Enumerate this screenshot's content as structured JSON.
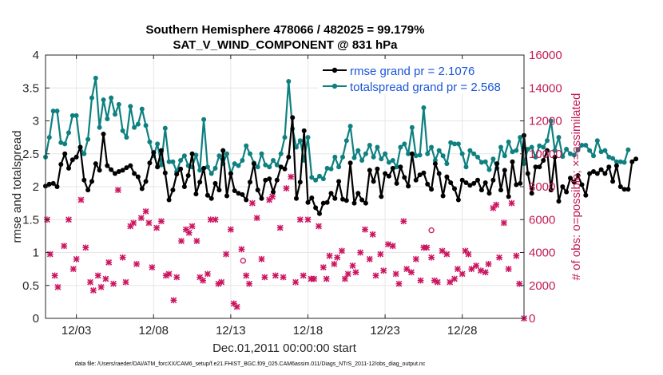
{
  "chart_data": {
    "type": "line",
    "title_line1": "Southern Hemisphere 478066 / 482025 = 99.179%",
    "title_line2": "SAT_V_WIND_COMPONENT @ 831 hPa",
    "xlabel": "Dec.01,2011 00:00:00 start",
    "ylabel": "rmse and totalspread",
    "ylabel_right": "# of obs: o=possible; ×=assimilated",
    "footnote": "data file: /Users/raeder/DAI/ATM_forcXX/CAM6_setup/f.e21.FHIST_BGC.f09_025.CAM6assim.011/Diags_NTrS_2011-12/obs_diag_output.nc",
    "xlim": [
      1.0,
      32.0
    ],
    "ylim": [
      0,
      4
    ],
    "ylim_right": [
      0,
      16000
    ],
    "x_ticks": [
      3,
      8,
      13,
      18,
      23,
      28
    ],
    "x_tick_labels": [
      "12/03",
      "12/08",
      "12/13",
      "12/18",
      "12/23",
      "12/28"
    ],
    "y_ticks": [
      0,
      0.5,
      1,
      1.5,
      2,
      2.5,
      3,
      3.5,
      4
    ],
    "y_tick_labels": [
      "0",
      "0.5",
      "1",
      "1.5",
      "2",
      "2.5",
      "3",
      "3.5",
      "4"
    ],
    "y_ticks_right": [
      0,
      2000,
      4000,
      6000,
      8000,
      10000,
      12000,
      14000,
      16000
    ],
    "y_tick_labels_right": [
      "0",
      "2000",
      "4000",
      "6000",
      "8000",
      "10000",
      "12000",
      "14000",
      "16000"
    ],
    "colors": {
      "rmse": "#000000",
      "totalspread": "#0f8080",
      "obs": "#cc1460",
      "legend_text": "#1a56d9",
      "grid": "#e6e6e6"
    },
    "series": [
      {
        "name": "rmse",
        "legend": "rmse grand pr = 2.1076",
        "x_start": 1.0,
        "x_step": 0.25,
        "values": [
          2.01,
          2.04,
          2.05,
          2.0,
          2.34,
          2.5,
          2.28,
          2.41,
          2.45,
          2.6,
          2.1,
          1.95,
          2.08,
          2.35,
          2.25,
          2.8,
          2.32,
          2.26,
          2.2,
          2.23,
          2.25,
          2.29,
          2.32,
          2.2,
          2.15,
          1.97,
          2.08,
          2.36,
          2.52,
          2.3,
          2.55,
          2.21,
          1.8,
          1.95,
          2.19,
          2.27,
          2.0,
          2.17,
          2.5,
          1.89,
          2.07,
          2.28,
          1.87,
          1.82,
          2.05,
          1.95,
          2.55,
          1.86,
          2.2,
          1.94,
          1.9,
          1.88,
          1.8,
          2.07,
          2.35,
          1.95,
          1.82,
          2.1,
          2.12,
          1.92,
          2.1,
          2.3,
          2.27,
          2.45,
          3.05,
          1.82,
          2.07,
          2.85,
          1.76,
          1.83,
          1.68,
          1.59,
          1.75,
          1.76,
          1.9,
          1.82,
          2.08,
          1.81,
          1.79,
          2.36,
          1.75,
          1.9,
          1.8,
          1.75,
          2.25,
          2.08,
          2.27,
          1.85,
          2.2,
          2.16,
          2.28,
          2.05,
          2.3,
          2.14,
          2.01,
          2.5,
          2.1,
          2.18,
          2.21,
          2.04,
          1.96,
          2.35,
          2.2,
          1.86,
          2.15,
          2.06,
          1.97,
          1.8,
          2.1,
          2.06,
          2.02,
          2.05,
          2.1,
          1.95,
          2.06,
          1.9,
          2.1,
          2.35,
          1.95,
          2.25,
          1.85,
          2.38,
          2.03,
          2.05,
          2.78,
          2.2,
          1.9,
          2.3,
          2.3,
          2.4,
          2.55,
          1.95,
          2.45,
          1.78,
          2.0,
          1.92,
          2.13,
          2.07,
          2.17,
          2.03,
          1.87,
          2.2,
          2.23,
          2.2,
          2.26,
          2.2,
          2.3,
          2.08,
          2.32,
          2.0,
          1.96,
          1.96,
          2.38,
          2.42
        ]
      },
      {
        "name": "totalspread",
        "legend": "totalspread grand pr = 2.568",
        "x_start": 1.0,
        "x_step": 0.25,
        "values": [
          2.45,
          2.75,
          3.15,
          3.15,
          2.67,
          2.65,
          2.82,
          3.08,
          3.08,
          2.6,
          2.5,
          2.72,
          3.35,
          3.65,
          2.9,
          3.32,
          3.03,
          3.35,
          3.1,
          3.25,
          2.85,
          2.75,
          3.22,
          2.9,
          2.95,
          3.18,
          2.93,
          2.68,
          2.47,
          2.65,
          2.33,
          2.89,
          2.38,
          2.38,
          2.23,
          2.4,
          2.47,
          2.32,
          2.3,
          2.48,
          2.25,
          3.02,
          2.3,
          2.2,
          2.28,
          2.47,
          2.35,
          2.5,
          2.2,
          2.35,
          2.32,
          2.4,
          2.62,
          2.5,
          2.36,
          2.3,
          2.5,
          2.33,
          2.3,
          2.4,
          2.33,
          2.5,
          2.75,
          3.6,
          2.88,
          2.6,
          2.7,
          2.4,
          2.75,
          2.14,
          2.1,
          2.16,
          2.12,
          2.28,
          2.27,
          2.45,
          2.3,
          2.45,
          2.7,
          2.92,
          2.44,
          2.55,
          2.4,
          2.5,
          2.63,
          2.45,
          2.6,
          2.42,
          2.5,
          2.37,
          2.4,
          2.3,
          2.6,
          2.65,
          2.5,
          2.9,
          2.47,
          2.48,
          3.2,
          2.5,
          2.6,
          2.4,
          2.55,
          2.47,
          2.35,
          2.67,
          2.65,
          2.65,
          2.5,
          2.3,
          2.55,
          2.5,
          2.45,
          2.37,
          2.38,
          2.26,
          2.42,
          2.28,
          2.6,
          2.47,
          2.68,
          2.53,
          2.55,
          2.75,
          2.35,
          2.57,
          2.6,
          2.45,
          2.62,
          2.6,
          2.7,
          3.0,
          2.55,
          2.75,
          2.46,
          2.57,
          2.5,
          2.48,
          2.56,
          2.63,
          2.63,
          2.55,
          2.47,
          2.7,
          2.53,
          2.55,
          2.45,
          2.43,
          2.38,
          2.38,
          2.37,
          2.56
        ]
      }
    ],
    "obs_assimilated": {
      "name": "# of obs assimilated",
      "marker": "x",
      "points": [
        [
          1.1,
          6000
        ],
        [
          1.3,
          3900
        ],
        [
          1.6,
          2600
        ],
        [
          1.8,
          1900
        ],
        [
          2.2,
          4400
        ],
        [
          2.5,
          6000
        ],
        [
          2.8,
          3000
        ],
        [
          3.0,
          3600
        ],
        [
          3.3,
          7200
        ],
        [
          3.6,
          4300
        ],
        [
          3.9,
          2200
        ],
        [
          4.1,
          1700
        ],
        [
          4.4,
          2600
        ],
        [
          4.6,
          1900
        ],
        [
          4.9,
          2400
        ],
        [
          5.1,
          3400
        ],
        [
          5.4,
          2100
        ],
        [
          5.7,
          7800
        ],
        [
          6.0,
          3700
        ],
        [
          6.2,
          2200
        ],
        [
          6.5,
          5600
        ],
        [
          6.7,
          5800
        ],
        [
          6.9,
          3300
        ],
        [
          7.2,
          6100
        ],
        [
          7.5,
          6500
        ],
        [
          7.7,
          5800
        ],
        [
          7.9,
          3100
        ],
        [
          8.2,
          5500
        ],
        [
          8.5,
          5900
        ],
        [
          8.8,
          2600
        ],
        [
          9.0,
          2700
        ],
        [
          9.3,
          1100
        ],
        [
          9.5,
          2500
        ],
        [
          9.8,
          4700
        ],
        [
          10.1,
          5400
        ],
        [
          10.3,
          5200
        ],
        [
          10.5,
          5600
        ],
        [
          10.8,
          4700
        ],
        [
          11.0,
          2500
        ],
        [
          11.2,
          2300
        ],
        [
          11.5,
          2700
        ],
        [
          11.7,
          6000
        ],
        [
          12.0,
          6000
        ],
        [
          12.2,
          2100
        ],
        [
          12.4,
          2200
        ],
        [
          12.7,
          3900
        ],
        [
          13.0,
          5400
        ],
        [
          13.2,
          900
        ],
        [
          13.4,
          700
        ],
        [
          13.7,
          4200
        ],
        [
          14.0,
          2600
        ],
        [
          14.2,
          2100
        ],
        [
          14.4,
          7000
        ],
        [
          14.7,
          6100
        ],
        [
          15.0,
          3600
        ],
        [
          15.2,
          2500
        ],
        [
          15.5,
          7200
        ],
        [
          15.7,
          7400
        ],
        [
          15.9,
          2600
        ],
        [
          16.2,
          5500
        ],
        [
          16.4,
          2500
        ],
        [
          16.6,
          7900
        ],
        [
          16.9,
          8600
        ],
        [
          17.2,
          2200
        ],
        [
          17.5,
          6000
        ],
        [
          17.7,
          2600
        ],
        [
          18.0,
          6000
        ],
        [
          18.2,
          2400
        ],
        [
          18.4,
          2400
        ],
        [
          18.7,
          5600
        ],
        [
          19.0,
          3100
        ],
        [
          19.2,
          2400
        ],
        [
          19.4,
          3800
        ],
        [
          19.7,
          3300
        ],
        [
          19.9,
          3700
        ],
        [
          20.2,
          4100
        ],
        [
          20.4,
          2400
        ],
        [
          20.6,
          2700
        ],
        [
          20.9,
          3200
        ],
        [
          21.1,
          2800
        ],
        [
          21.4,
          4000
        ],
        [
          21.7,
          5400
        ],
        [
          22.0,
          3600
        ],
        [
          22.2,
          5100
        ],
        [
          22.4,
          2600
        ],
        [
          22.7,
          3900
        ],
        [
          22.9,
          2900
        ],
        [
          23.2,
          4500
        ],
        [
          23.5,
          4400
        ],
        [
          23.7,
          2700
        ],
        [
          23.9,
          2100
        ],
        [
          24.2,
          5900
        ],
        [
          24.4,
          3000
        ],
        [
          24.7,
          2800
        ],
        [
          25.0,
          3600
        ],
        [
          25.3,
          2300
        ],
        [
          25.5,
          4300
        ],
        [
          25.7,
          4300
        ],
        [
          26.0,
          3700
        ],
        [
          26.2,
          2300
        ],
        [
          26.4,
          2200
        ],
        [
          26.7,
          4100
        ],
        [
          27.0,
          3900
        ],
        [
          27.2,
          2200
        ],
        [
          27.5,
          2400
        ],
        [
          27.7,
          3000
        ],
        [
          28.0,
          2700
        ],
        [
          28.2,
          4100
        ],
        [
          28.4,
          3900
        ],
        [
          28.6,
          3000
        ],
        [
          28.9,
          3200
        ],
        [
          29.2,
          2900
        ],
        [
          29.5,
          2800
        ],
        [
          29.7,
          3300
        ],
        [
          30.0,
          6700
        ],
        [
          30.2,
          6900
        ],
        [
          30.4,
          3700
        ],
        [
          30.7,
          5800
        ],
        [
          31.0,
          3000
        ],
        [
          31.2,
          7000
        ],
        [
          31.5,
          3800
        ],
        [
          31.7,
          2100
        ],
        [
          32.0,
          0
        ]
      ]
    },
    "obs_possible": {
      "name": "# of obs possible",
      "marker": "o",
      "points": [
        [
          13.8,
          3500
        ],
        [
          26.0,
          5350
        ]
      ]
    },
    "legend_position": "top-right"
  }
}
